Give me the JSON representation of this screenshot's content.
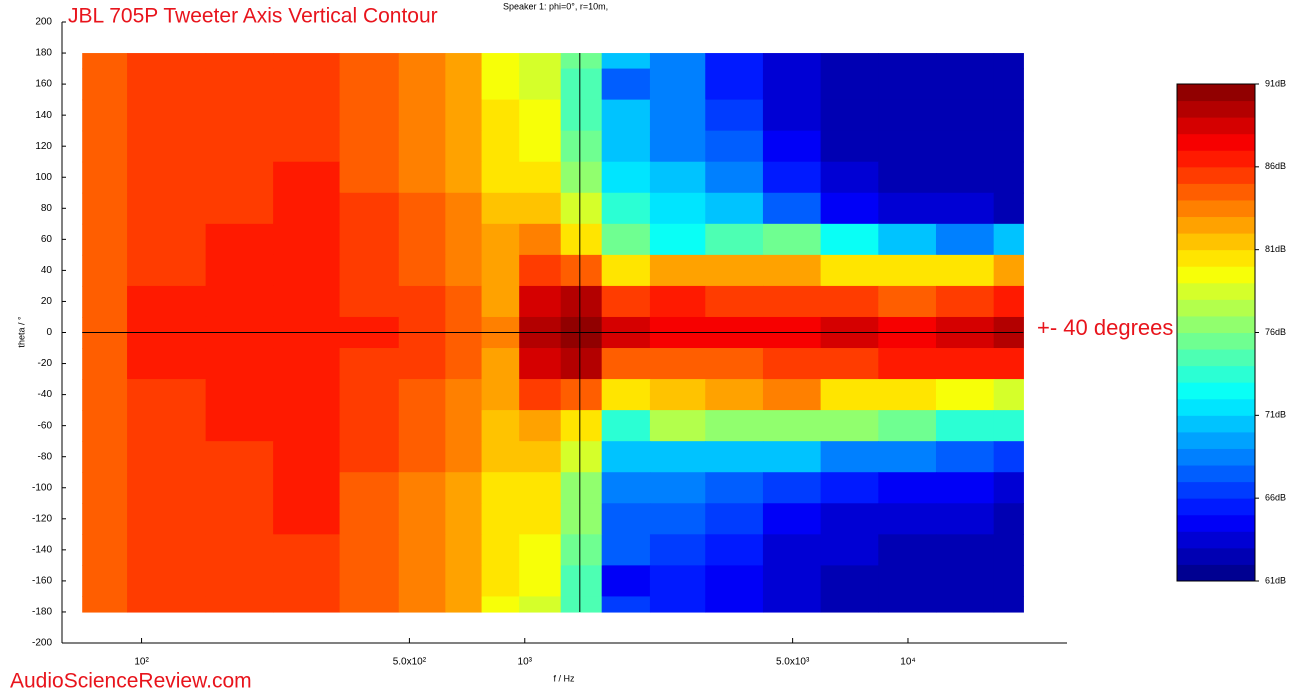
{
  "chart_data": {
    "type": "contour",
    "title": "JBL 705P Tweeter Axis Vertical Contour",
    "subtitle": "Speaker 1: phi=0°, r=10m,",
    "x_label": "f / Hz",
    "y_label": "theta / °",
    "annotation": "+- 40 degrees",
    "watermark": "AudioScienceReview.com",
    "x_log": true,
    "xlim": [
      62,
      26000
    ],
    "xticks": [
      {
        "value": 100,
        "label": "10²"
      },
      {
        "value": 500,
        "label": "5.0x10²"
      },
      {
        "value": 1000,
        "label": "10³"
      },
      {
        "value": 5000,
        "label": "5.0x10³"
      },
      {
        "value": 10000,
        "label": "10⁴"
      }
    ],
    "ylim": [
      -200,
      200
    ],
    "yticks": [
      -200,
      -180,
      -160,
      -140,
      -120,
      -100,
      -80,
      -60,
      -40,
      -20,
      0,
      20,
      40,
      60,
      80,
      100,
      120,
      140,
      160,
      180,
      200
    ],
    "clim": [
      61,
      91
    ],
    "cticks": [
      {
        "value": 61,
        "label": "61dB"
      },
      {
        "value": 66,
        "label": "66dB"
      },
      {
        "value": 71,
        "label": "71dB"
      },
      {
        "value": 76,
        "label": "76dB"
      },
      {
        "value": 81,
        "label": "81dB"
      },
      {
        "value": 86,
        "label": "86dB"
      },
      {
        "value": 91,
        "label": "91dB"
      }
    ],
    "cursor": {
      "x": 1392,
      "y": 0
    },
    "x": [
      70,
      120,
      180,
      270,
      400,
      550,
      700,
      850,
      1100,
      1400,
      1800,
      2500,
      3500,
      5000,
      7000,
      10000,
      14000,
      20000
    ],
    "y": [
      180,
      160,
      140,
      120,
      100,
      80,
      60,
      40,
      20,
      0,
      -20,
      -40,
      -60,
      -80,
      -100,
      -120,
      -140,
      -160,
      -180
    ],
    "z": [
      [
        84,
        85,
        85,
        85,
        84,
        83,
        82,
        79,
        78,
        75,
        70,
        68,
        65,
        63,
        62,
        62,
        62,
        62
      ],
      [
        84,
        85,
        85,
        85,
        84,
        83,
        82,
        79,
        78,
        74,
        67,
        68,
        65,
        63,
        62,
        62,
        62,
        62
      ],
      [
        84,
        85,
        85,
        85,
        84,
        83,
        82,
        80,
        79,
        74,
        70,
        68,
        66,
        63,
        62,
        62,
        62,
        62
      ],
      [
        84,
        85,
        85,
        85,
        84,
        83,
        82,
        80,
        79,
        75,
        70,
        68,
        67,
        64,
        62,
        62,
        62,
        62
      ],
      [
        84,
        85,
        85,
        86,
        84,
        83,
        82,
        80,
        80,
        76,
        71,
        70,
        68,
        65,
        63,
        62,
        62,
        62
      ],
      [
        84,
        85,
        85,
        86,
        85,
        84,
        83,
        81,
        81,
        78,
        73,
        71,
        70,
        67,
        64,
        63,
        63,
        62
      ],
      [
        84,
        85,
        86,
        86,
        85,
        84,
        83,
        82,
        83,
        80,
        75,
        72,
        74,
        75,
        72,
        70,
        68,
        70
      ],
      [
        84,
        85,
        86,
        86,
        85,
        84,
        83,
        82,
        85,
        84,
        80,
        82,
        82,
        82,
        80,
        80,
        80,
        82
      ],
      [
        84,
        86,
        86,
        86,
        85,
        85,
        84,
        82,
        88,
        89,
        85,
        86,
        85,
        85,
        85,
        84,
        85,
        86
      ],
      [
        84,
        86,
        86,
        86,
        86,
        85,
        84,
        83,
        89,
        90,
        88,
        87,
        87,
        87,
        88,
        87,
        88,
        89
      ],
      [
        84,
        86,
        86,
        86,
        85,
        85,
        84,
        82,
        88,
        89,
        84,
        84,
        84,
        85,
        85,
        86,
        86,
        86
      ],
      [
        84,
        85,
        86,
        86,
        85,
        84,
        83,
        82,
        85,
        84,
        80,
        81,
        82,
        83,
        80,
        80,
        79,
        78
      ],
      [
        84,
        85,
        86,
        86,
        85,
        84,
        83,
        81,
        82,
        80,
        73,
        77,
        76,
        76,
        76,
        75,
        73,
        73
      ],
      [
        84,
        85,
        85,
        86,
        85,
        84,
        83,
        81,
        81,
        78,
        70,
        70,
        70,
        70,
        68,
        68,
        67,
        66
      ],
      [
        84,
        85,
        85,
        86,
        84,
        83,
        82,
        80,
        80,
        76,
        68,
        68,
        67,
        66,
        65,
        64,
        64,
        63
      ],
      [
        84,
        85,
        85,
        86,
        84,
        83,
        82,
        80,
        80,
        76,
        67,
        67,
        66,
        64,
        63,
        63,
        63,
        62
      ],
      [
        84,
        85,
        85,
        85,
        84,
        83,
        82,
        80,
        79,
        75,
        67,
        66,
        65,
        63,
        63,
        62,
        62,
        62
      ],
      [
        84,
        85,
        85,
        85,
        84,
        83,
        82,
        80,
        79,
        74,
        64,
        65,
        64,
        63,
        62,
        62,
        62,
        62
      ],
      [
        84,
        85,
        85,
        85,
        84,
        83,
        82,
        79,
        78,
        74,
        66,
        65,
        64,
        63,
        62,
        62,
        62,
        62
      ]
    ]
  }
}
